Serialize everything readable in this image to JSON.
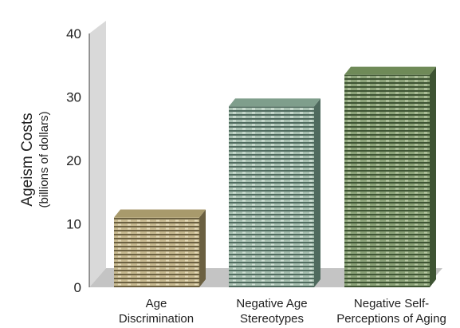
{
  "chart_data": {
    "type": "bar",
    "title": "",
    "ylabel": "Ageism Costs",
    "ylabel_sub": "(billions of dollars)",
    "xlabel": "",
    "ylim": [
      0,
      40
    ],
    "yticks": [
      "0",
      "10",
      "20",
      "30",
      "40"
    ],
    "categories": [
      [
        "Age",
        "Discrimination"
      ],
      [
        "Negative Age",
        "Stereotypes"
      ],
      [
        "Negative Self-",
        "Perceptions of Aging"
      ]
    ],
    "values": [
      11,
      28.5,
      33.5
    ],
    "grid": false,
    "legend": "none",
    "colors": {
      "bar_fills": [
        "#c9bb92",
        "#a9c1b2",
        "#8da47a"
      ],
      "bar_dark": [
        "#6b6041",
        "#4f6a5e",
        "#3e5433"
      ],
      "bar_top": [
        "#a89a6c",
        "#7f9e8c",
        "#6f8a58"
      ],
      "wall": "#d9d9d9",
      "floor": "#c4c4c4"
    }
  }
}
